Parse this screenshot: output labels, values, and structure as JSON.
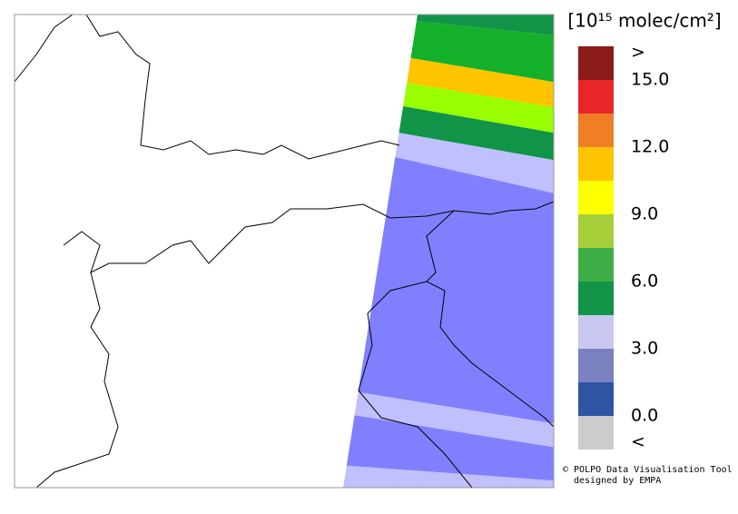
{
  "colorbar": {
    "title": "[10¹⁵ molec/cm²]",
    "colors": [
      "#8b1a1a",
      "#e8262a",
      "#f07e26",
      "#ffc400",
      "#ffff00",
      "#a6ce39",
      "#3fae49",
      "#119447",
      "#c8c8f0",
      "#7a82c0",
      "#2f54a4",
      "#cccccc"
    ],
    "labels": [
      ">",
      "15.0",
      "12.0",
      "9.0",
      "6.0",
      "3.0",
      "0.0",
      "<"
    ]
  },
  "credits": [
    "© POLPO Data Visualisation Tool",
    "designed by EMPA"
  ]
}
